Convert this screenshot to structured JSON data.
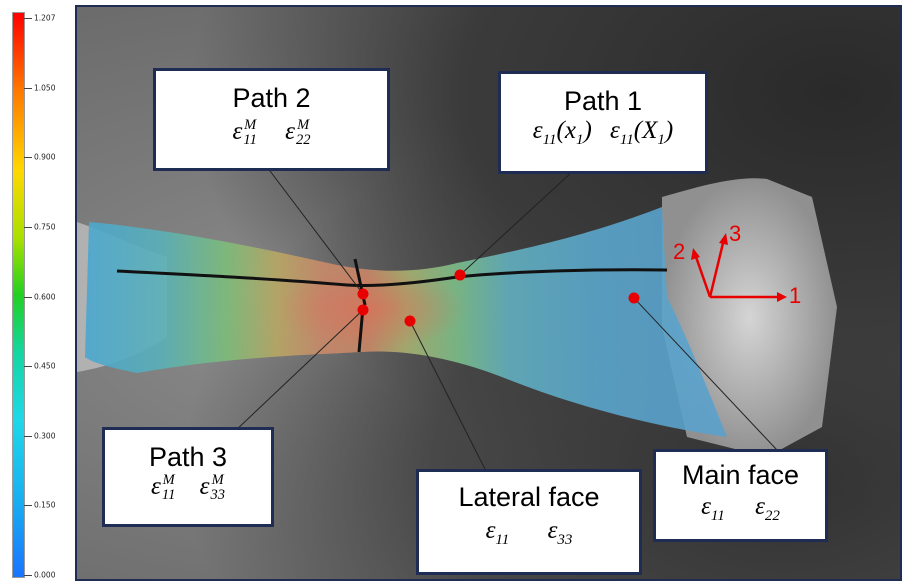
{
  "legend": {
    "ticks": [
      "1.207",
      "1.050",
      "0.900",
      "0.750",
      "0.600",
      "0.450",
      "0.300",
      "0.150",
      "0.000"
    ],
    "colors": [
      "#ff0000",
      "#ff7a00",
      "#ffd800",
      "#22d022",
      "#1fd8e8",
      "#1874ff"
    ]
  },
  "axes": {
    "label_1": "1",
    "label_2": "2",
    "label_3": "3",
    "color": "#e80000"
  },
  "callouts": {
    "path2": {
      "title": "Path 2",
      "symbol": "ε",
      "sub_a": "11",
      "sup_a": "M",
      "sub_b": "22",
      "sup_b": "M"
    },
    "path1": {
      "title": "Path 1",
      "symbol": "ε",
      "sub_a": "11",
      "arg_a": "x",
      "arg_a_sub": "1",
      "sub_b": "11",
      "arg_b": "X",
      "arg_b_sub": "1"
    },
    "path3": {
      "title": "Path 3",
      "symbol": "ε",
      "sub_a": "11",
      "sup_a": "M",
      "sub_b": "33",
      "sup_b": "M"
    },
    "lateral": {
      "title": "Lateral face",
      "symbol": "ε",
      "sub_a": "11",
      "sub_b": "33"
    },
    "main": {
      "title": "Main face",
      "symbol": "ε",
      "sub_a": "11",
      "sub_b": "22"
    }
  }
}
